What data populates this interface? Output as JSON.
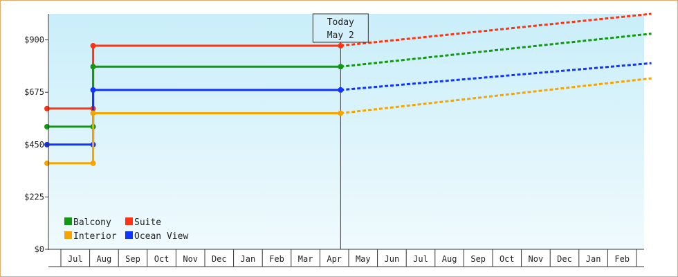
{
  "chart_data": {
    "type": "line",
    "title": "",
    "xlabel": "",
    "ylabel": "",
    "ylim": [
      0,
      1012
    ],
    "y_ticks": [
      {
        "value": 0,
        "label": "$0"
      },
      {
        "value": 225,
        "label": "$225"
      },
      {
        "value": 450,
        "label": "$450"
      },
      {
        "value": 675,
        "label": "$675"
      },
      {
        "value": 900,
        "label": "$900"
      }
    ],
    "x_ticks": [
      "Jul",
      "Aug",
      "Sep",
      "Oct",
      "Nov",
      "Dec",
      "Jan",
      "Feb",
      "Mar",
      "Apr",
      "May",
      "Jun",
      "Jul",
      "Aug",
      "Sep",
      "Oct",
      "Nov",
      "Dec",
      "Jan",
      "Feb"
    ],
    "today": {
      "line1": "Today",
      "line2": "May 2"
    },
    "grid": false,
    "legend_position": "bottom-left",
    "series": [
      {
        "name": "Suite",
        "color": "#ff3311",
        "steps": [
          [
            0,
            605
          ],
          [
            1.6,
            605
          ],
          [
            1.6,
            875
          ],
          [
            10.2,
            875
          ]
        ],
        "points": [
          [
            0,
            605
          ],
          [
            1.6,
            605
          ],
          [
            1.6,
            875
          ],
          [
            10.2,
            875
          ]
        ],
        "forecast": [
          [
            10.2,
            875
          ],
          [
            21,
            1012
          ]
        ]
      },
      {
        "name": "Balcony",
        "color": "#119911",
        "steps": [
          [
            0,
            527
          ],
          [
            1.6,
            527
          ],
          [
            1.6,
            785
          ],
          [
            10.2,
            785
          ]
        ],
        "points": [
          [
            0,
            527
          ],
          [
            1.6,
            527
          ],
          [
            1.6,
            785
          ],
          [
            10.2,
            785
          ]
        ],
        "forecast": [
          [
            10.2,
            785
          ],
          [
            21,
            927
          ]
        ]
      },
      {
        "name": "Ocean View",
        "color": "#1133ff",
        "steps": [
          [
            0,
            450
          ],
          [
            1.6,
            450
          ],
          [
            1.6,
            685
          ],
          [
            10.2,
            685
          ]
        ],
        "points": [
          [
            0,
            450
          ],
          [
            1.6,
            450
          ],
          [
            1.6,
            685
          ],
          [
            10.2,
            685
          ]
        ],
        "forecast": [
          [
            10.2,
            685
          ],
          [
            21,
            800
          ]
        ]
      },
      {
        "name": "Interior",
        "color": "#f5a500",
        "steps": [
          [
            0,
            370
          ],
          [
            1.6,
            370
          ],
          [
            1.6,
            585
          ],
          [
            10.2,
            585
          ]
        ],
        "points": [
          [
            0,
            370
          ],
          [
            1.6,
            370
          ],
          [
            1.6,
            585
          ],
          [
            10.2,
            585
          ]
        ],
        "forecast": [
          [
            10.2,
            585
          ],
          [
            21,
            735
          ]
        ]
      }
    ],
    "legend": [
      {
        "name": "Balcony",
        "color": "#119911"
      },
      {
        "name": "Suite",
        "color": "#ff3311"
      },
      {
        "name": "Interior",
        "color": "#f5a500"
      },
      {
        "name": "Ocean View",
        "color": "#1133ff"
      }
    ]
  }
}
